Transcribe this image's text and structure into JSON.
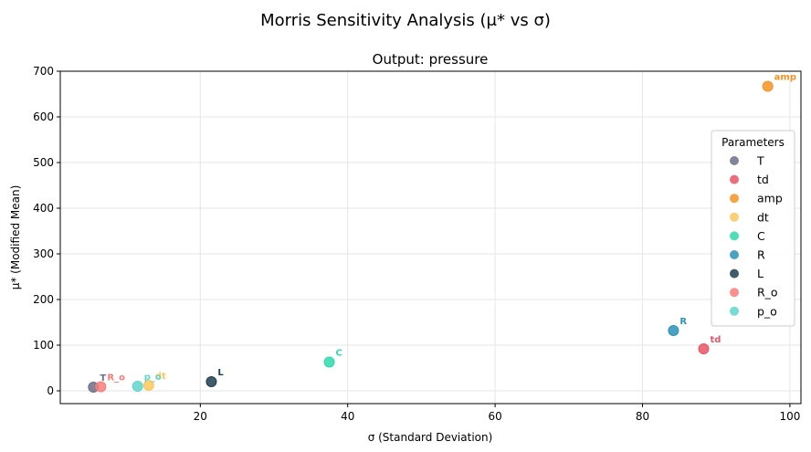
{
  "chart_data": {
    "type": "scatter",
    "suptitle": "Morris Sensitivity Analysis (μ* vs σ)",
    "title": "Output: pressure",
    "xlabel": "σ (Standard Deviation)",
    "ylabel": "μ* (Modified Mean)",
    "xlim": [
      1,
      101.5
    ],
    "ylim": [
      -28,
      700
    ],
    "xticks": [
      20,
      40,
      60,
      80,
      100
    ],
    "yticks": [
      0,
      100,
      200,
      300,
      400,
      500,
      600,
      700
    ],
    "grid": true,
    "legend": {
      "title": "Parameters",
      "placement": "right"
    },
    "points": [
      {
        "name": "T",
        "x": 5.5,
        "y": 8,
        "color": "#6f6f86"
      },
      {
        "name": "td",
        "x": 88.3,
        "y": 92,
        "color": "#e85565"
      },
      {
        "name": "amp",
        "x": 97.0,
        "y": 667,
        "color": "#f39325"
      },
      {
        "name": "dt",
        "x": 13.0,
        "y": 12,
        "color": "#fbc85a"
      },
      {
        "name": "C",
        "x": 37.5,
        "y": 63,
        "color": "#2fd9ac"
      },
      {
        "name": "R",
        "x": 84.2,
        "y": 132,
        "color": "#2c93b9"
      },
      {
        "name": "L",
        "x": 21.5,
        "y": 20,
        "color": "#1f4050"
      },
      {
        "name": "R_o",
        "x": 6.5,
        "y": 9,
        "color": "#fb7b7b"
      },
      {
        "name": "p_o",
        "x": 11.5,
        "y": 10,
        "color": "#5fd6cc"
      }
    ]
  }
}
